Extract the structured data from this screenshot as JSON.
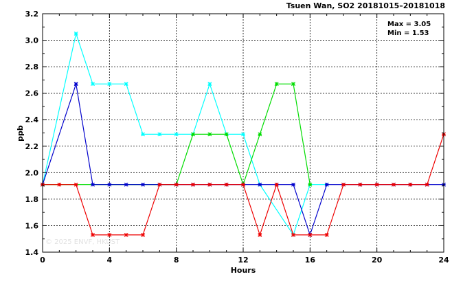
{
  "chart_data": {
    "type": "line",
    "title": "Tsuen Wan, SO2 20181015–20181018",
    "xlabel": "Hours",
    "ylabel": "ppb",
    "xlim": [
      0,
      24
    ],
    "ylim": [
      1.4,
      3.2
    ],
    "xticks": [
      0,
      4,
      8,
      12,
      16,
      20,
      24
    ],
    "yticks": [
      1.4,
      1.6,
      1.8,
      2.0,
      2.2,
      2.4,
      2.6,
      2.8,
      3.0,
      3.2
    ],
    "grid": true,
    "stats": {
      "max": "Max = 3.05",
      "min": "Min = 1.53"
    },
    "watermark": "© 2025  ENVF, HKUST",
    "colors": {
      "cyan": "#00ffff",
      "blue": "#0000cc",
      "green": "#00dd00",
      "red": "#ee0000"
    },
    "series": [
      {
        "color": "#00ffff",
        "x": [
          0,
          2,
          3,
          4,
          5,
          6,
          7,
          8,
          9,
          10,
          11,
          12,
          13,
          15,
          16,
          17
        ],
        "y": [
          1.91,
          3.05,
          2.67,
          2.67,
          2.67,
          2.29,
          2.29,
          2.29,
          2.29,
          2.67,
          2.29,
          2.29,
          1.91,
          1.53,
          1.91,
          1.91
        ]
      },
      {
        "color": "#00dd00",
        "x": [
          0,
          8,
          9,
          10,
          11,
          12,
          13,
          14,
          15,
          16
        ],
        "y": [
          1.91,
          1.91,
          2.29,
          2.29,
          2.29,
          1.91,
          2.29,
          2.67,
          2.67,
          1.91
        ]
      },
      {
        "color": "#0000cc",
        "x": [
          0,
          2,
          3,
          4,
          5,
          6,
          7,
          8,
          9,
          10,
          11,
          12,
          13,
          14,
          15,
          16,
          17,
          18,
          19,
          20,
          21,
          22,
          23,
          24
        ],
        "y": [
          1.91,
          2.67,
          1.91,
          1.91,
          1.91,
          1.91,
          1.91,
          1.91,
          1.91,
          1.91,
          1.91,
          1.91,
          1.91,
          1.91,
          1.91,
          1.53,
          1.91,
          1.91,
          1.91,
          1.91,
          1.91,
          1.91,
          1.91,
          1.91
        ]
      },
      {
        "color": "#ee0000",
        "x": [
          0,
          1,
          2,
          3,
          4,
          5,
          6,
          7,
          8,
          9,
          10,
          11,
          12,
          13,
          14,
          15,
          16,
          17,
          18,
          19,
          20,
          21,
          22,
          23,
          24
        ],
        "y": [
          1.91,
          1.91,
          1.91,
          1.53,
          1.53,
          1.53,
          1.53,
          1.91,
          1.91,
          1.91,
          1.91,
          1.91,
          1.91,
          1.53,
          1.91,
          1.53,
          1.53,
          1.53,
          1.91,
          1.91,
          1.91,
          1.91,
          1.91,
          1.91,
          2.29
        ]
      }
    ]
  }
}
